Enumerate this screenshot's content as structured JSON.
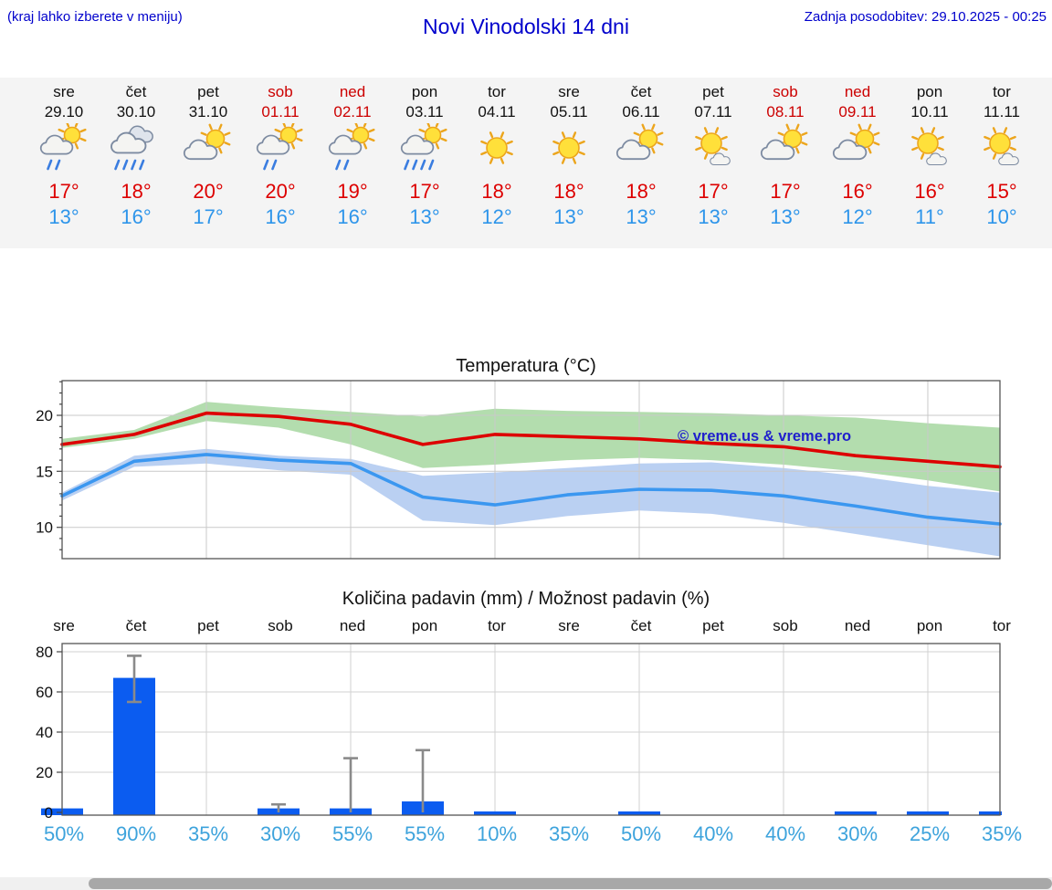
{
  "header": {
    "hint": "(kraj lahko izberete v meniju)",
    "title": "Novi Vinodolski 14 dni",
    "last_update": "Zadnja posodobitev: 29.10.2025 - 00:25"
  },
  "colors": {
    "link_blue": "#0000cc",
    "temp_max_red": "#dd0000",
    "temp_min_blue": "#2e95ea",
    "weekend_red": "#cc0000",
    "probability_blue": "#3da3dc",
    "bar_blue": "#0b5cf0",
    "band_green": "#a6d7a0",
    "band_blue": "#aec8f0"
  },
  "days": [
    {
      "name": "sre",
      "date": "29.10",
      "weekend": false,
      "icon": "sun-cloud-rain",
      "tmax": "17°",
      "tmin": "13°"
    },
    {
      "name": "čet",
      "date": "30.10",
      "weekend": false,
      "icon": "cloud-rain",
      "tmax": "18°",
      "tmin": "16°"
    },
    {
      "name": "pet",
      "date": "31.10",
      "weekend": false,
      "icon": "sun-cloud",
      "tmax": "20°",
      "tmin": "17°"
    },
    {
      "name": "sob",
      "date": "01.11",
      "weekend": true,
      "icon": "sun-cloud-rain",
      "tmax": "20°",
      "tmin": "16°"
    },
    {
      "name": "ned",
      "date": "02.11",
      "weekend": true,
      "icon": "sun-cloud-rain",
      "tmax": "19°",
      "tmin": "16°"
    },
    {
      "name": "pon",
      "date": "03.11",
      "weekend": false,
      "icon": "sun-cloud-rain-heavy",
      "tmax": "17°",
      "tmin": "13°"
    },
    {
      "name": "tor",
      "date": "04.11",
      "weekend": false,
      "icon": "sun",
      "tmax": "18°",
      "tmin": "12°"
    },
    {
      "name": "sre",
      "date": "05.11",
      "weekend": false,
      "icon": "sun",
      "tmax": "18°",
      "tmin": "13°"
    },
    {
      "name": "čet",
      "date": "06.11",
      "weekend": false,
      "icon": "sun-cloud",
      "tmax": "18°",
      "tmin": "13°"
    },
    {
      "name": "pet",
      "date": "07.11",
      "weekend": false,
      "icon": "sun-small-cloud",
      "tmax": "17°",
      "tmin": "13°"
    },
    {
      "name": "sob",
      "date": "08.11",
      "weekend": true,
      "icon": "sun-cloud",
      "tmax": "17°",
      "tmin": "13°"
    },
    {
      "name": "ned",
      "date": "09.11",
      "weekend": true,
      "icon": "sun-cloud",
      "tmax": "16°",
      "tmin": "12°"
    },
    {
      "name": "pon",
      "date": "10.11",
      "weekend": false,
      "icon": "sun-small-cloud",
      "tmax": "16°",
      "tmin": "11°"
    },
    {
      "name": "tor",
      "date": "11.11",
      "weekend": false,
      "icon": "sun-small-cloud",
      "tmax": "15°",
      "tmin": "10°"
    }
  ],
  "chart_data": [
    {
      "type": "line",
      "title": "Temperatura (°C)",
      "categories": [
        "sre",
        "čet",
        "pet",
        "sob",
        "ned",
        "pon",
        "tor",
        "sre",
        "čet",
        "pet",
        "sob",
        "ned",
        "pon",
        "tor"
      ],
      "yticks": [
        10,
        15,
        20
      ],
      "ylim": [
        7.2,
        23.1
      ],
      "grid": true,
      "watermark": "© vreme.us & vreme.pro",
      "series": [
        {
          "name": "max temperature",
          "color": "#dd0000",
          "values": [
            17.4,
            18.3,
            20.2,
            19.9,
            19.2,
            17.4,
            18.3,
            18.1,
            17.9,
            17.5,
            17.2,
            16.4,
            15.9,
            15.4
          ]
        },
        {
          "name": "min temperature",
          "color": "#3b97f0",
          "values": [
            12.8,
            15.9,
            16.5,
            16.0,
            15.7,
            12.7,
            12.0,
            12.9,
            13.4,
            13.3,
            12.8,
            11.9,
            10.9,
            10.3
          ]
        }
      ],
      "bands": [
        {
          "name": "max range",
          "color": "#a6d7a0",
          "upper": [
            17.9,
            18.7,
            21.2,
            20.7,
            20.3,
            19.9,
            20.6,
            20.4,
            20.3,
            20.2,
            20.0,
            19.8,
            19.3,
            18.9
          ],
          "lower": [
            17.1,
            17.9,
            19.5,
            18.9,
            17.4,
            15.3,
            15.6,
            16.0,
            16.2,
            16.0,
            15.6,
            15.0,
            14.2,
            13.2
          ]
        },
        {
          "name": "min range",
          "color": "#aec8f0",
          "upper": [
            13.1,
            16.4,
            17.0,
            16.4,
            16.1,
            14.6,
            14.9,
            15.3,
            15.7,
            15.8,
            15.3,
            14.6,
            13.7,
            13.1
          ],
          "lower": [
            12.4,
            15.4,
            15.7,
            15.1,
            14.7,
            10.6,
            10.2,
            11.0,
            11.5,
            11.2,
            10.4,
            9.4,
            8.4,
            7.4
          ]
        }
      ]
    },
    {
      "type": "bar",
      "title": "Količina padavin (mm) / Možnost padavin (%)",
      "categories": [
        "sre",
        "čet",
        "pet",
        "sob",
        "ned",
        "pon",
        "tor",
        "sre",
        "čet",
        "pet",
        "sob",
        "ned",
        "pon",
        "tor"
      ],
      "yticks": [
        0,
        20,
        40,
        60,
        80
      ],
      "ylim": [
        0,
        86
      ],
      "bar_color": "#0b5cf0",
      "values": [
        2,
        67,
        0,
        2,
        2,
        5.5,
        0.5,
        0,
        0.5,
        0,
        0,
        0.5,
        0.5,
        0.5
      ],
      "whiskers": [
        null,
        [
          55,
          78
        ],
        null,
        [
          0,
          4
        ],
        [
          0,
          27
        ],
        [
          0,
          31
        ],
        null,
        null,
        null,
        null,
        null,
        null,
        null,
        null
      ],
      "probabilities": [
        "50%",
        "90%",
        "35%",
        "30%",
        "55%",
        "55%",
        "10%",
        "35%",
        "50%",
        "40%",
        "40%",
        "30%",
        "25%",
        "35%"
      ]
    }
  ]
}
